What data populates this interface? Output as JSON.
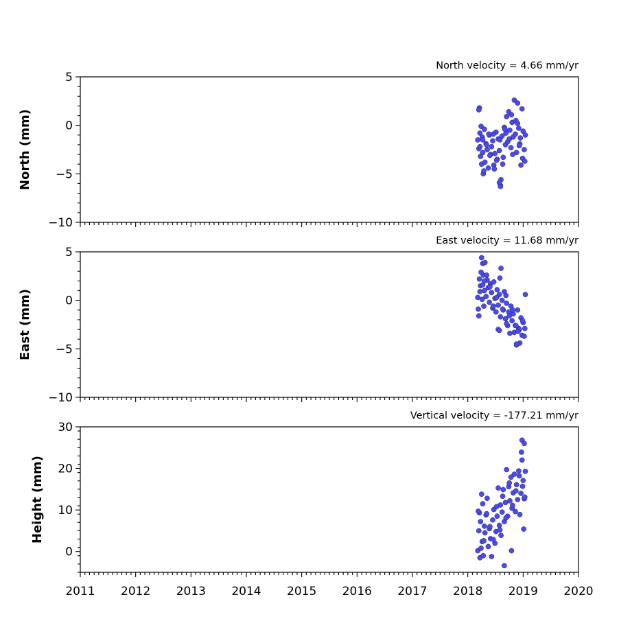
{
  "chart_data": [
    {
      "type": "scatter",
      "title": "North velocity = 4.66 mm/yr",
      "ylabel": "North (mm)",
      "xlim": [
        2011,
        2020
      ],
      "ylim": [
        -10,
        5
      ],
      "yticks": [
        -10,
        -5,
        0,
        5
      ],
      "ytick_labels": [
        "−10",
        "−5",
        "0",
        "5"
      ],
      "marker_color": "#4a4af0",
      "series": [
        {
          "x": [
            2018.18,
            2018.2,
            2018.21,
            2018.22,
            2018.23,
            2018.25,
            2018.26,
            2018.27,
            2018.28,
            2018.3,
            2018.31,
            2018.33,
            2018.35,
            2018.37,
            2018.39,
            2018.41,
            2018.43,
            2018.45,
            2018.47,
            2018.49,
            2018.51,
            2018.53,
            2018.55,
            2018.57,
            2018.59,
            2018.6,
            2018.62,
            2018.64,
            2018.66,
            2018.68,
            2018.7,
            2018.72,
            2018.74,
            2018.76,
            2018.78,
            2018.8,
            2018.82,
            2018.84,
            2018.86,
            2018.88,
            2018.9,
            2018.92,
            2018.94,
            2018.96,
            2018.98,
            2019.0,
            2019.02,
            2019.04,
            2018.2,
            2018.24,
            2018.29,
            2018.34,
            2018.4,
            2018.46,
            2018.52,
            2018.58,
            2018.63,
            2018.69,
            2018.75,
            2018.81,
            2018.87,
            2018.93,
            2018.99,
            2019.03,
            2018.57,
            2018.59,
            2018.22,
            2018.27,
            2018.38,
            2018.48,
            2018.67,
            2018.79,
            2018.9,
            2018.95
          ],
          "y": [
            -1.5,
            -2.4,
            1.8,
            -0.8,
            -3.2,
            -4.0,
            -1.2,
            -2.8,
            -5.0,
            -0.4,
            -3.8,
            -1.9,
            -2.5,
            -4.4,
            -1.0,
            -3.0,
            -2.2,
            -1.6,
            -4.1,
            -2.9,
            -0.7,
            -3.5,
            -1.4,
            -2.6,
            -6.2,
            -5.6,
            -1.1,
            -3.3,
            -0.2,
            -2.0,
            0.9,
            -1.7,
            1.4,
            -0.5,
            -2.3,
            0.3,
            -1.2,
            2.6,
            -0.9,
            -2.8,
            2.3,
            -0.3,
            -1.9,
            -4.1,
            1.7,
            -0.6,
            -2.5,
            -1.0,
            1.6,
            -0.1,
            -4.7,
            -2.0,
            -3.1,
            -0.9,
            -3.6,
            -1.5,
            -4.0,
            -0.8,
            -1.4,
            -3.0,
            0.5,
            -2.1,
            -3.4,
            -3.7,
            -5.9,
            -6.3,
            -2.2,
            -1.5,
            -0.9,
            -4.5,
            -0.4,
            1.1,
            0.2,
            -1.3
          ]
        }
      ]
    },
    {
      "type": "scatter",
      "title": "East velocity = 11.68 mm/yr",
      "ylabel": "East (mm)",
      "xlim": [
        2011,
        2020
      ],
      "ylim": [
        -10,
        5
      ],
      "yticks": [
        -10,
        -5,
        0,
        5
      ],
      "ytick_labels": [
        "−10",
        "−5",
        "0",
        "5"
      ],
      "marker_color": "#4a4af0",
      "series": [
        {
          "x": [
            2018.18,
            2018.2,
            2018.21,
            2018.22,
            2018.23,
            2018.25,
            2018.26,
            2018.27,
            2018.28,
            2018.3,
            2018.31,
            2018.33,
            2018.35,
            2018.37,
            2018.39,
            2018.41,
            2018.43,
            2018.45,
            2018.47,
            2018.49,
            2018.51,
            2018.53,
            2018.55,
            2018.57,
            2018.59,
            2018.6,
            2018.62,
            2018.64,
            2018.66,
            2018.68,
            2018.7,
            2018.72,
            2018.74,
            2018.76,
            2018.78,
            2018.8,
            2018.82,
            2018.84,
            2018.86,
            2018.88,
            2018.9,
            2018.92,
            2018.94,
            2018.96,
            2018.98,
            2019.0,
            2019.02,
            2019.04,
            2018.19,
            2018.24,
            2018.29,
            2018.34,
            2018.4,
            2018.46,
            2018.52,
            2018.58,
            2018.63,
            2018.69,
            2018.75,
            2018.81,
            2018.87,
            2018.93,
            2018.99,
            2019.03,
            2018.27,
            2018.3,
            2018.7,
            2018.55,
            2018.57,
            2018.88,
            2018.91
          ],
          "y": [
            0.3,
            -1.6,
            2.2,
            0.9,
            1.5,
            4.4,
            0.1,
            3.8,
            2.6,
            1.0,
            3.9,
            0.4,
            2.1,
            1.3,
            -0.2,
            1.7,
            0.8,
            -0.8,
            1.9,
            0.2,
            -1.2,
            1.1,
            -0.5,
            0.6,
            -1.7,
            3.3,
            0.0,
            -1.0,
            0.9,
            -1.9,
            -0.3,
            -2.6,
            -1.2,
            -3.4,
            -0.6,
            -2.1,
            -1.4,
            -3.3,
            -2.6,
            -4.6,
            -1.0,
            -2.9,
            -4.4,
            -1.8,
            -3.6,
            -2.3,
            -3.7,
            0.6,
            -0.9,
            2.9,
            -0.6,
            2.6,
            1.4,
            -0.6,
            0.3,
            2.3,
            -0.9,
            0.5,
            -1.6,
            -1.0,
            -2.6,
            -3.0,
            -2.1,
            -2.9,
            1.6,
            2.0,
            -2.4,
            -3.0,
            -3.1,
            -4.5,
            -3.2
          ]
        }
      ]
    },
    {
      "type": "scatter",
      "title": "Vertical velocity = -177.21 mm/yr",
      "ylabel": "Height (mm)",
      "xlim": [
        2011,
        2020
      ],
      "ylim": [
        -5,
        30
      ],
      "yticks": [
        0,
        10,
        20,
        30
      ],
      "ytick_labels": [
        "0",
        "10",
        "20",
        "30"
      ],
      "marker_color": "#4a4af0",
      "series": [
        {
          "x": [
            2018.18,
            2018.2,
            2018.21,
            2018.22,
            2018.23,
            2018.25,
            2018.26,
            2018.27,
            2018.28,
            2018.3,
            2018.31,
            2018.33,
            2018.35,
            2018.37,
            2018.39,
            2018.41,
            2018.43,
            2018.45,
            2018.47,
            2018.49,
            2018.51,
            2018.53,
            2018.55,
            2018.57,
            2018.59,
            2018.6,
            2018.62,
            2018.64,
            2018.66,
            2018.68,
            2018.7,
            2018.72,
            2018.74,
            2018.76,
            2018.78,
            2018.8,
            2018.82,
            2018.84,
            2018.86,
            2018.88,
            2018.9,
            2018.92,
            2018.94,
            2018.96,
            2018.98,
            2019.0,
            2019.02,
            2019.04,
            2018.19,
            2018.24,
            2018.29,
            2018.34,
            2018.4,
            2018.46,
            2018.52,
            2018.58,
            2018.63,
            2018.69,
            2018.75,
            2018.81,
            2018.87,
            2018.93,
            2018.99,
            2019.03,
            2018.66,
            2018.79,
            2018.98,
            2019.02,
            2018.97,
            2019.01
          ],
          "y": [
            0.2,
            5.0,
            9.3,
            -1.5,
            7.2,
            13.8,
            2.4,
            11.5,
            -1.0,
            6.1,
            4.5,
            8.8,
            12.8,
            1.2,
            5.5,
            3.1,
            -1.2,
            7.6,
            10.1,
            2.0,
            4.8,
            8.5,
            15.3,
            6.3,
            11.2,
            3.9,
            9.5,
            14.9,
            7.2,
            11.8,
            19.7,
            8.5,
            15.6,
            12.2,
            17.9,
            10.4,
            14.1,
            18.6,
            9.6,
            16.1,
            12.5,
            19.4,
            8.9,
            14.0,
            22.0,
            17.1,
            12.7,
            19.3,
            9.7,
            0.8,
            2.6,
            9.1,
            6.0,
            2.9,
            10.8,
            5.2,
            13.3,
            8.1,
            16.5,
            11.1,
            14.6,
            18.2,
            15.7,
            13.1,
            -3.4,
            0.2,
            26.8,
            26.0,
            23.9,
            5.4
          ]
        }
      ]
    }
  ],
  "x_tick_labels": [
    "2011",
    "2012",
    "2013",
    "2014",
    "2015",
    "2016",
    "2017",
    "2018",
    "2019",
    "2020"
  ]
}
